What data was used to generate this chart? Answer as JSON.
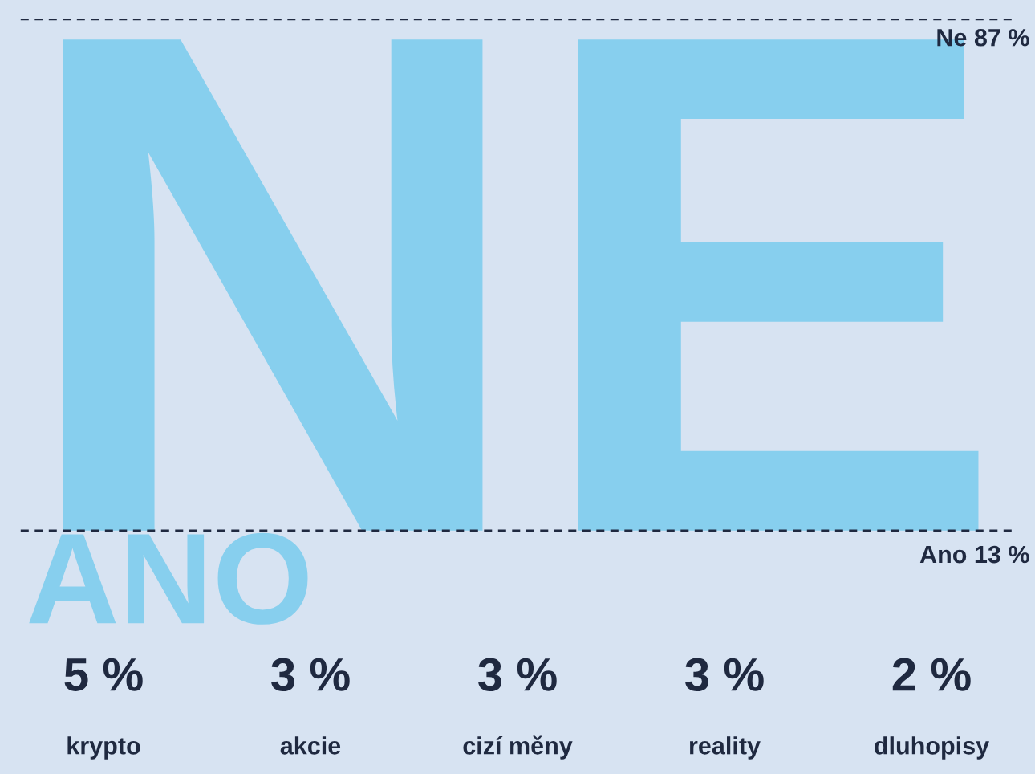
{
  "chart_data": [
    {
      "type": "other",
      "values": [
        87,
        13
      ],
      "value_labels": [
        "Ne 87 %",
        "Ano 13 %"
      ],
      "annotations": [
        "NE",
        "ANO"
      ],
      "color": "#87cfee"
    },
    {
      "type": "other",
      "categories": [
        "krypto",
        "akcie",
        "cizí měny",
        "reality",
        "dluhopisy"
      ],
      "values": [
        5,
        3,
        3,
        3,
        2
      ],
      "value_labels": [
        "5 %",
        "3 %",
        "3 %",
        "3 %",
        "2 %"
      ]
    }
  ]
}
